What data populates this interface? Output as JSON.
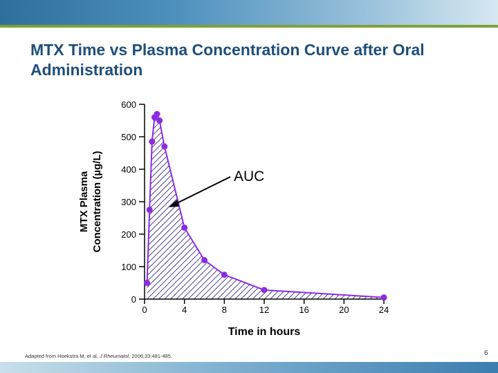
{
  "slide": {
    "title": "MTX Time vs Plasma Concentration Curve after Oral Administration",
    "footnote_plain": "Adapted from Hoekstra M, et al. ",
    "footnote_journal": "J Rheumatol.",
    "footnote_rest": " 2006;33:481-485.",
    "page_number": "6"
  },
  "colors": {
    "series": "#8b2be2",
    "hatch": "#3a2a8a",
    "title": "#1f4e79"
  },
  "chart_data": {
    "type": "area",
    "title": "",
    "xlabel": "Time in hours",
    "ylabel_line1": "MTX Plasma",
    "ylabel_line2": "Concentration (µg/L)",
    "xlim": [
      0,
      24
    ],
    "ylim": [
      0,
      600
    ],
    "x_ticks": [
      0,
      4,
      8,
      12,
      16,
      20,
      24
    ],
    "y_ticks": [
      0,
      100,
      200,
      300,
      400,
      500,
      600
    ],
    "grid": false,
    "annotation": "AUC",
    "series": [
      {
        "x": [
          0.25,
          0.5,
          0.75,
          1.0,
          1.25,
          1.5,
          2.0,
          4.0,
          6.0,
          8.0,
          12.0,
          24.0
        ],
        "y": [
          50,
          275,
          485,
          560,
          570,
          550,
          470,
          220,
          120,
          75,
          28,
          5
        ]
      }
    ]
  }
}
